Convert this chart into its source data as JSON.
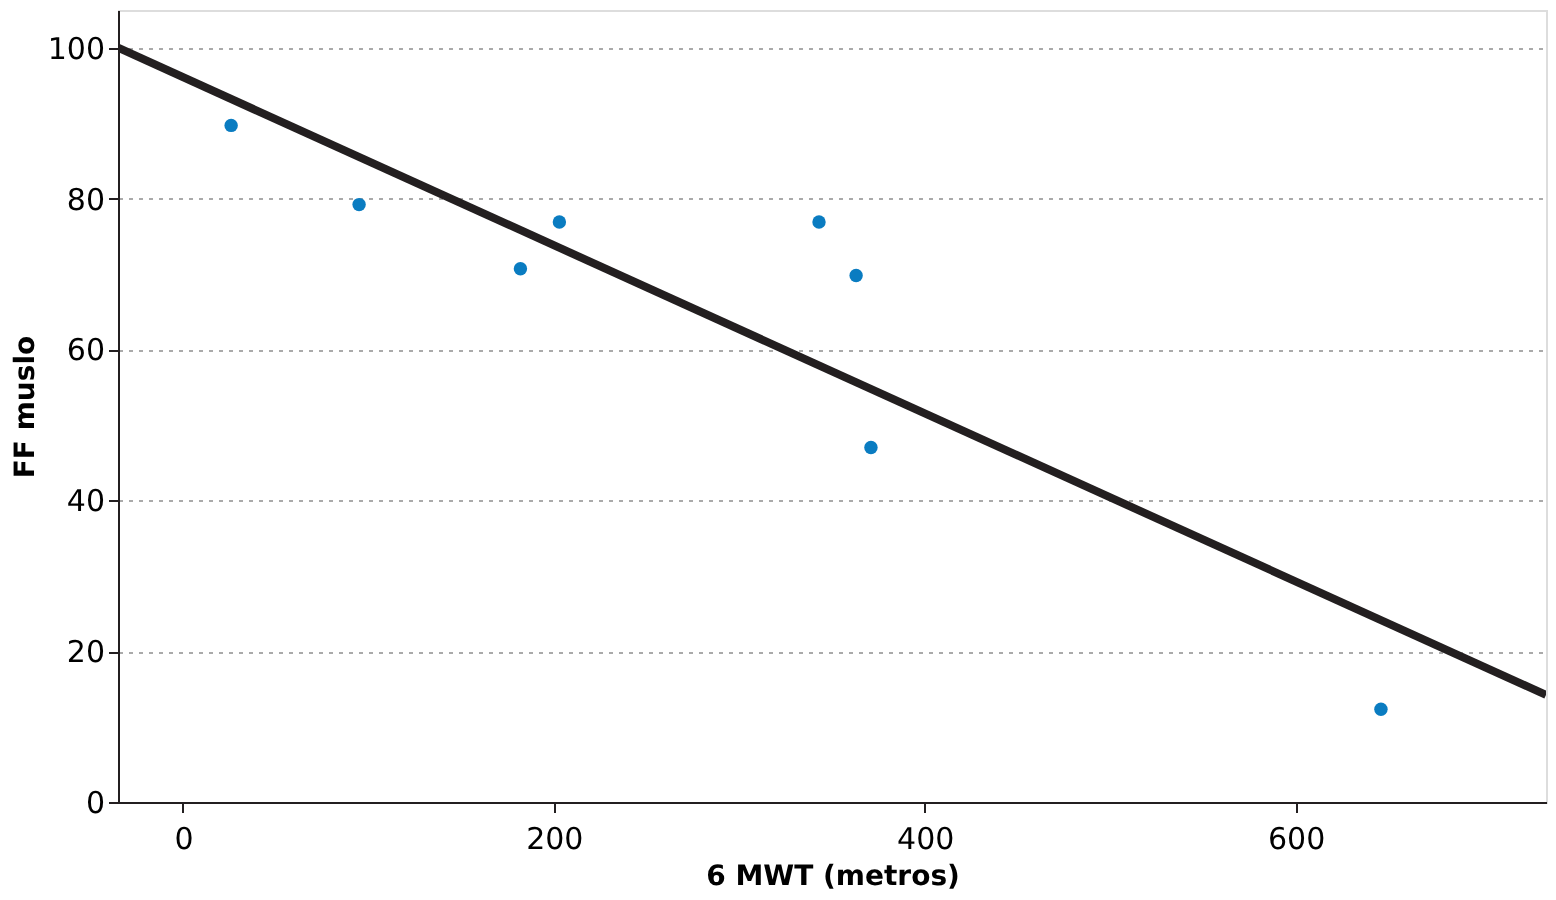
{
  "chart_data": {
    "type": "scatter",
    "xlabel": "6 MWT (metros)",
    "ylabel": "FF muslo",
    "xlim": [
      -35,
      735
    ],
    "ylim": [
      0,
      105
    ],
    "xticks": [
      0,
      200,
      400,
      600
    ],
    "yticks": [
      0,
      20,
      40,
      60,
      80,
      100
    ],
    "grid": "y",
    "marker": "circle",
    "series": [
      {
        "color": "#0a7cc1",
        "x": [
          26,
          95,
          182,
          203,
          343,
          363,
          371,
          646
        ],
        "values": [
          89.7,
          79.2,
          70.7,
          76.9,
          76.9,
          69.8,
          47,
          12.3
        ]
      },
      {
        "type": "line",
        "color": "#231f20",
        "x": [
          -35,
          735
        ],
        "values": [
          100,
          14.2
        ],
        "line_style": "solid",
        "marker": "none"
      }
    ]
  }
}
